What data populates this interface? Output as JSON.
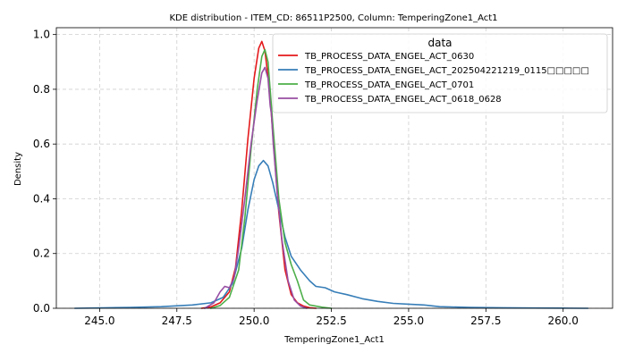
{
  "chart_data": {
    "type": "line",
    "title": "KDE distribution - ITEM_CD: 86511P2500, Column: TemperingZone1_Act1",
    "xlabel": "TemperingZone1_Act1",
    "ylabel": "Density",
    "xlim": [
      243.6,
      261.6
    ],
    "ylim": [
      0,
      1.025
    ],
    "xticks": [
      245.0,
      247.5,
      250.0,
      252.5,
      255.0,
      257.5,
      260.0
    ],
    "xtick_labels": [
      "245.0",
      "247.5",
      "250.0",
      "252.5",
      "255.0",
      "257.5",
      "260.0"
    ],
    "yticks": [
      0.0,
      0.2,
      0.4,
      0.6,
      0.8,
      1.0
    ],
    "ytick_labels": [
      "0.0",
      "0.2",
      "0.4",
      "0.6",
      "0.8",
      "1.0"
    ],
    "grid": true,
    "legend": {
      "title": "data",
      "position": "top-right"
    },
    "series": [
      {
        "name": "TB_PROCESS_DATA_ENGEL_ACT_0630",
        "color": "#e41a1c",
        "x": [
          248.3,
          248.6,
          248.9,
          249.2,
          249.4,
          249.6,
          249.8,
          250.0,
          250.15,
          250.25,
          250.35,
          250.5,
          250.65,
          250.8,
          251.0,
          251.2,
          251.4,
          251.6,
          251.8,
          252.0
        ],
        "y": [
          0.0,
          0.005,
          0.02,
          0.06,
          0.15,
          0.36,
          0.62,
          0.84,
          0.95,
          0.975,
          0.94,
          0.8,
          0.57,
          0.35,
          0.14,
          0.05,
          0.02,
          0.008,
          0.002,
          0.0
        ]
      },
      {
        "name": "TB_PROCESS_DATA_ENGEL_ACT_202504221219_0115□□□□□",
        "color": "#377eb8",
        "x": [
          244.2,
          246.0,
          247.0,
          248.0,
          248.6,
          249.0,
          249.3,
          249.6,
          249.8,
          250.0,
          250.15,
          250.3,
          250.45,
          250.6,
          250.8,
          251.0,
          251.2,
          251.5,
          251.8,
          252.0,
          252.3,
          252.6,
          253.0,
          253.5,
          254.0,
          254.5,
          255.0,
          255.5,
          256.0,
          257.0,
          258.0,
          259.0,
          260.0,
          260.8
        ],
        "y": [
          0.0,
          0.003,
          0.006,
          0.012,
          0.02,
          0.04,
          0.09,
          0.22,
          0.36,
          0.47,
          0.52,
          0.54,
          0.52,
          0.46,
          0.36,
          0.26,
          0.19,
          0.14,
          0.1,
          0.08,
          0.075,
          0.06,
          0.05,
          0.035,
          0.025,
          0.018,
          0.015,
          0.012,
          0.006,
          0.003,
          0.002,
          0.001,
          0.0005,
          0.0
        ]
      },
      {
        "name": "TB_PROCESS_DATA_ENGEL_ACT_0701",
        "color": "#4daf4a",
        "x": [
          248.6,
          248.9,
          249.2,
          249.5,
          249.7,
          249.9,
          250.1,
          250.25,
          250.35,
          250.45,
          250.6,
          250.8,
          251.0,
          251.2,
          251.4,
          251.6,
          251.8,
          252.0,
          252.2,
          252.5
        ],
        "y": [
          0.0,
          0.01,
          0.04,
          0.14,
          0.33,
          0.58,
          0.8,
          0.92,
          0.945,
          0.9,
          0.68,
          0.4,
          0.24,
          0.16,
          0.1,
          0.03,
          0.012,
          0.008,
          0.004,
          0.0
        ]
      },
      {
        "name": "TB_PROCESS_DATA_ENGEL_ACT_0618_0628",
        "color": "#984ea3",
        "x": [
          248.4,
          248.7,
          248.9,
          249.05,
          249.2,
          249.35,
          249.5,
          249.7,
          249.9,
          250.1,
          250.25,
          250.35,
          250.45,
          250.52,
          250.56,
          250.62,
          250.75,
          250.9,
          251.1,
          251.3,
          251.5,
          251.7
        ],
        "y": [
          0.0,
          0.02,
          0.06,
          0.08,
          0.075,
          0.11,
          0.22,
          0.4,
          0.6,
          0.76,
          0.86,
          0.88,
          0.84,
          0.74,
          0.71,
          0.6,
          0.42,
          0.25,
          0.1,
          0.03,
          0.008,
          0.0
        ]
      }
    ]
  }
}
